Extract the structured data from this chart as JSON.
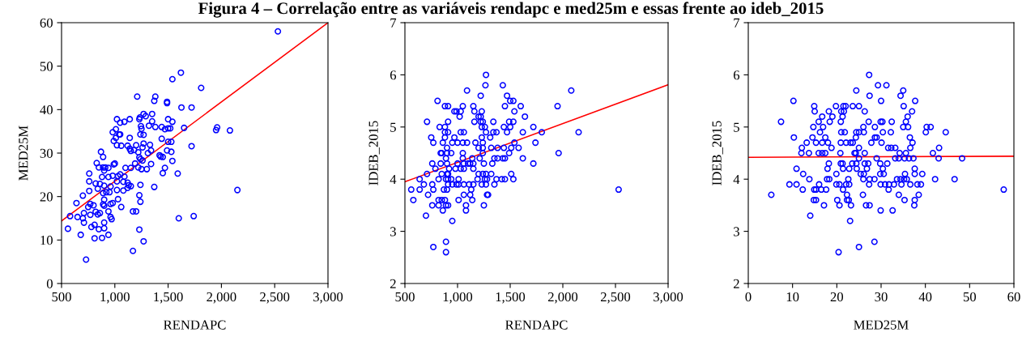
{
  "chart_data": [
    {
      "type": "scatter",
      "title": "Figura 4 – Correlação entre as variáveis rendapc e med25m e essas frente ao ideb_2015",
      "xlabel": "RENDAPC",
      "ylabel": "MED25M",
      "xlim": [
        500,
        3000
      ],
      "xticks": [
        500,
        {
          "value": 1000,
          "label": "1,000"
        },
        {
          "value": 1500,
          "label": "1,500"
        },
        {
          "value": 2000,
          "label": "2,000"
        },
        {
          "value": 2500,
          "label": "2,500"
        },
        {
          "value": 3000,
          "label": "3,000"
        }
      ],
      "ylim": [
        0,
        60
      ],
      "yticks": [
        0,
        10,
        20,
        30,
        40,
        50,
        60
      ],
      "grid": false,
      "series": [
        {
          "marker": "circle",
          "color": "#0000ff",
          "x": [
            2530,
            1620,
            1540,
            1810,
            1210,
            1380,
            1370,
            1490,
            1490,
            1625,
            1720,
            1270,
            1290,
            1350,
            1235,
            1020,
            1140,
            1090,
            1050,
            1230,
            1350,
            1540,
            1320,
            1380,
            1500,
            1245,
            1440,
            1470,
            1500,
            1520,
            1650,
            1960,
            1950,
            2080,
            1250,
            1010,
            980,
            1240,
            1270,
            1040,
            1050,
            1010,
            1140,
            990,
            1440,
            1500,
            1530,
            1720,
            1270,
            1330,
            1120,
            1200,
            1020,
            1060,
            1140,
            1150,
            1180,
            1260,
            1340,
            1310,
            1490,
            1530,
            870,
            1220,
            1420,
            1430,
            1450,
            1540,
            890,
            830,
            1000,
            990,
            1190,
            1230,
            1240,
            1260,
            1340,
            1470,
            850,
            890,
            910,
            940,
            1100,
            1150,
            1220,
            1250,
            1300,
            1450,
            1590,
            760,
            900,
            1050,
            980,
            1030,
            880,
            940,
            1090,
            760,
            820,
            860,
            900,
            1020,
            1080,
            1120,
            1130,
            1150,
            1240,
            1370,
            840,
            1120,
            960,
            1020,
            1080,
            920,
            950,
            890,
            700,
            1230,
            760,
            1030,
            1240,
            900,
            640,
            770,
            800,
            890,
            960,
            980,
            750,
            1060,
            710,
            820,
            860,
            940,
            1170,
            1200,
            580,
            650,
            700,
            770,
            840,
            960,
            970,
            1600,
            1740,
            710,
            810,
            780,
            900,
            560,
            850,
            900,
            1230,
            680,
            810,
            880,
            940,
            1270,
            1170,
            730,
            2150,
            900
          ],
          "values": [
            58,
            48.5,
            47,
            45,
            43,
            43,
            42,
            41.8,
            41.5,
            40.5,
            40.5,
            39,
            38.5,
            39,
            38.2,
            37.8,
            37.8,
            37.2,
            37,
            37.8,
            37.3,
            37.2,
            36.3,
            36,
            37.8,
            36.2,
            36,
            35.5,
            35.7,
            35.7,
            35.8,
            35.9,
            35.3,
            35.2,
            35.6,
            35.5,
            34.8,
            34.3,
            34.2,
            34.3,
            34.3,
            33.5,
            33.5,
            32.8,
            33.3,
            32.6,
            32.6,
            31.6,
            32.2,
            31.9,
            31.7,
            31.8,
            31.8,
            31.7,
            31,
            30.5,
            30.7,
            31.3,
            30.6,
            30,
            30.6,
            30.3,
            30.3,
            30.2,
            29.5,
            29.2,
            29.1,
            28.2,
            29.1,
            27.7,
            27.6,
            27.4,
            27.6,
            29,
            28.6,
            28.3,
            27.5,
            26.6,
            26.7,
            26.7,
            26.7,
            26.6,
            26.6,
            26.6,
            26.7,
            26.3,
            26.3,
            25.4,
            25.3,
            25.3,
            26,
            25.1,
            24.8,
            24.7,
            24.5,
            24.5,
            24.6,
            23.5,
            23,
            22.9,
            22.5,
            23.5,
            23.4,
            23.2,
            22.6,
            22.4,
            22.7,
            22.2,
            21.8,
            22,
            22.3,
            21.5,
            21.4,
            21,
            21,
            20.8,
            20.2,
            20.3,
            21.3,
            19.4,
            18.8,
            19.3,
            18.5,
            18.3,
            18,
            18.2,
            18.3,
            18.5,
            17.6,
            17.6,
            16.2,
            16.5,
            16.2,
            16.6,
            16.6,
            16.6,
            15.5,
            15.3,
            15,
            15.8,
            15.9,
            15.3,
            14.8,
            15,
            15.5,
            14,
            13.5,
            13,
            14,
            12.6,
            12.5,
            12.7,
            12.4,
            11.2,
            10.4,
            10.5,
            11.2,
            9.7,
            7.5,
            5.5,
            21.5,
            17.9
          ]
        },
        {
          "type": "line",
          "color": "#ff0000",
          "x": [
            500,
            3000
          ],
          "values": [
            14.4,
            60
          ]
        }
      ]
    },
    {
      "type": "scatter",
      "xlabel": "RENDAPC",
      "ylabel": "IDEB_2015",
      "xlim": [
        500,
        3000
      ],
      "xticks": [
        500,
        {
          "value": 1000,
          "label": "1,000"
        },
        {
          "value": 1500,
          "label": "1,500"
        },
        {
          "value": 2000,
          "label": "2,000"
        },
        {
          "value": 2500,
          "label": "2,500"
        },
        {
          "value": 3000,
          "label": "3,000"
        }
      ],
      "ylim": [
        2,
        7
      ],
      "yticks": [
        2,
        3,
        4,
        5,
        6,
        7
      ],
      "grid": false,
      "series": [
        {
          "marker": "circle",
          "color": "#0000ff",
          "x": [
            1270,
            1265,
            1430,
            1090,
            2080,
            1220,
            1470,
            810,
            1500,
            1530,
            880,
            910,
            1050,
            1150,
            1450,
            1600,
            1950,
            970,
            990,
            1030,
            1160,
            1230,
            1540,
            1020,
            1200,
            1220,
            1640,
            710,
            910,
            1160,
            1220,
            1240,
            1340,
            1490,
            1530,
            830,
            880,
            1230,
            1260,
            1440,
            1500,
            1720,
            880,
            910,
            1030,
            1060,
            1270,
            1340,
            1370,
            1470,
            1620,
            1800,
            2150,
            750,
            880,
            970,
            1230,
            1310,
            770,
            860,
            950,
            1000,
            1050,
            1090,
            1170,
            1240,
            1540,
            1740,
            900,
            1200,
            1240,
            1320,
            1380,
            1440,
            1510,
            1580,
            840,
            850,
            900,
            940,
            1050,
            1240,
            1490,
            1960,
            890,
            1050,
            1140,
            1210,
            1350,
            1380,
            1430,
            1450,
            1620,
            760,
            840,
            900,
            1000,
            1060,
            1100,
            1120,
            1150,
            1250,
            1330,
            1720,
            790,
            920,
            980,
            1030,
            1060,
            1150,
            710,
            850,
            900,
            910,
            1200,
            1240,
            1270,
            1320,
            1510,
            640,
            820,
            890,
            910,
            940,
            1010,
            1190,
            1260,
            1280,
            1370,
            1420,
            1450,
            1530,
            680,
            760,
            910,
            950,
            990,
            1010,
            1060,
            1110,
            1150,
            1230,
            1270,
            1350,
            560,
            640,
            770,
            870,
            900,
            1130,
            2530,
            720,
            1060,
            1120,
            1280,
            1290,
            580,
            820,
            850,
            880,
            1010,
            1140,
            760,
            820,
            890,
            910,
            1080,
            1250,
            860,
            1080,
            700,
            950,
            890,
            770,
            890
          ],
          "values": [
            6.0,
            5.8,
            5.8,
            5.7,
            5.7,
            5.6,
            5.6,
            5.5,
            5.5,
            5.5,
            5.4,
            5.4,
            5.4,
            5.4,
            5.4,
            5.4,
            5.4,
            5.3,
            5.3,
            5.3,
            5.3,
            5.3,
            5.3,
            5.2,
            5.2,
            5.2,
            5.2,
            5.1,
            5.1,
            5.1,
            5.1,
            5.1,
            5.1,
            5.1,
            5.1,
            5.0,
            5.0,
            5.0,
            5.0,
            5.0,
            5.0,
            5.0,
            4.9,
            4.9,
            4.9,
            4.9,
            4.9,
            4.9,
            4.9,
            4.9,
            4.9,
            4.9,
            4.9,
            4.8,
            4.8,
            4.8,
            4.8,
            4.8,
            4.7,
            4.7,
            4.7,
            4.7,
            4.7,
            4.7,
            4.7,
            4.7,
            4.7,
            4.7,
            4.6,
            4.6,
            4.6,
            4.6,
            4.6,
            4.6,
            4.6,
            4.6,
            4.5,
            4.5,
            4.5,
            4.5,
            4.5,
            4.5,
            4.5,
            4.5,
            4.4,
            4.4,
            4.4,
            4.4,
            4.4,
            4.4,
            4.4,
            4.4,
            4.4,
            4.3,
            4.3,
            4.3,
            4.3,
            4.3,
            4.3,
            4.3,
            4.3,
            4.3,
            4.3,
            4.3,
            4.2,
            4.2,
            4.2,
            4.2,
            4.2,
            4.2,
            4.1,
            4.1,
            4.1,
            4.1,
            4.1,
            4.1,
            4.1,
            4.1,
            4.1,
            4.0,
            4.0,
            4.0,
            4.0,
            4.0,
            4.0,
            4.0,
            4.0,
            4.0,
            4.0,
            4.0,
            4.0,
            4.0,
            3.9,
            3.9,
            3.9,
            3.9,
            3.9,
            3.9,
            3.9,
            3.9,
            3.9,
            3.9,
            3.9,
            3.9,
            3.8,
            3.8,
            3.8,
            3.8,
            3.8,
            3.8,
            3.8,
            3.7,
            3.7,
            3.7,
            3.7,
            3.7,
            3.6,
            3.6,
            3.6,
            3.6,
            3.6,
            3.6,
            3.5,
            3.5,
            3.5,
            3.5,
            3.5,
            3.5,
            3.4,
            3.4,
            3.3,
            3.2,
            2.8,
            2.7,
            2.6
          ]
        },
        {
          "type": "line",
          "color": "#ff0000",
          "x": [
            500,
            3000
          ],
          "values": [
            3.95,
            5.81
          ]
        }
      ]
    },
    {
      "type": "scatter",
      "xlabel": "MED25M",
      "ylabel": "IDEB_2015",
      "xlim": [
        0,
        60
      ],
      "xticks": [
        0,
        10,
        20,
        30,
        40,
        50,
        60
      ],
      "ylim": [
        2,
        7
      ],
      "yticks": [
        2,
        3,
        4,
        5,
        6,
        7
      ],
      "grid": false,
      "series": [
        {
          "marker": "circle",
          "color": "#0000ff",
          "x": [
            27.3,
            29.3,
            31.2,
            24.4,
            35.0,
            27.4,
            34.4,
            10.2,
            30.0,
            37.7,
            14.9,
            19.8,
            21.5,
            22.0,
            23.6,
            25.0,
            35.1,
            15.0,
            18.2,
            21.0,
            21.6,
            26.3,
            37.0,
            16.7,
            19.0,
            21.3,
            36.0,
            7.4,
            15.9,
            18.4,
            20.9,
            27.2,
            29.9,
            30.3,
            32.4,
            35.6,
            14.7,
            16.9,
            26.0,
            28.6,
            35.0,
            36.1,
            40.3,
            41.2,
            16.2,
            21.0,
            21.8,
            24.4,
            25.0,
            26.1,
            30.4,
            32.2,
            40.1,
            44.6,
            10.3,
            14.5,
            17.4,
            24.3,
            28.6,
            29.0,
            36.5,
            13.2,
            15.3,
            16.7,
            18.0,
            20.9,
            22.1,
            23.1,
            23.6,
            27.8,
            30.1,
            37.1,
            12.1,
            18.8,
            25.0,
            31.6,
            32.3,
            33.2,
            36.6,
            43.1,
            12.0,
            13.7,
            15.9,
            16.7,
            17.4,
            20.8,
            24.0,
            24.3,
            26.3,
            34.2,
            35.6,
            41.7,
            25.0,
            29.0,
            33.2,
            34.0,
            35.3,
            36.3,
            37.3,
            43.0,
            48.3,
            18.2,
            20.9,
            21.3,
            23.5,
            24.4,
            26.3,
            27.1,
            29.8,
            31.4,
            10.9,
            17.9,
            21.4,
            22.8,
            24.5,
            26.8,
            30.4,
            37.6,
            12.4,
            19.9,
            25.4,
            26.1,
            29.8,
            30.6,
            35.4,
            37.6,
            39.3,
            13.8,
            17.8,
            18.3,
            22.6,
            26.0,
            27.4,
            28.5,
            33.6,
            34.4,
            35.2,
            35.8,
            42.2,
            46.6,
            9.3,
            10.9,
            16.0,
            19.9,
            20.6,
            22.1,
            22.8,
            27.3,
            29.9,
            30.9,
            31.8,
            32.9,
            34.6,
            36.6,
            38.2,
            39.0,
            5.2,
            12.3,
            14.9,
            15.3,
            16.5,
            17.6,
            21.4,
            31.7,
            57.7,
            22.3,
            25.9,
            34.0,
            38.5,
            14.8,
            15.3,
            20.1,
            22.3,
            22.7,
            35.3,
            37.6,
            17.1,
            20.6,
            23.2,
            26.6,
            27.4,
            37.5,
            29.9,
            32.6,
            14.0,
            23.0,
            28.5,
            25.0,
            20.4
          ],
          "values": [
            6.0,
            5.8,
            5.8,
            5.7,
            5.7,
            5.6,
            5.6,
            5.5,
            5.5,
            5.5,
            5.4,
            5.4,
            5.4,
            5.4,
            5.4,
            5.4,
            5.4,
            5.3,
            5.3,
            5.3,
            5.3,
            5.3,
            5.3,
            5.2,
            5.2,
            5.2,
            5.2,
            5.1,
            5.1,
            5.1,
            5.1,
            5.1,
            5.1,
            5.1,
            5.1,
            5.1,
            5.0,
            5.0,
            5.0,
            5.0,
            5.0,
            5.0,
            5.0,
            5.0,
            4.9,
            4.9,
            4.9,
            4.9,
            4.9,
            4.9,
            4.9,
            4.9,
            4.9,
            4.9,
            4.8,
            4.8,
            4.8,
            4.8,
            4.8,
            4.8,
            4.8,
            4.7,
            4.7,
            4.7,
            4.7,
            4.7,
            4.7,
            4.7,
            4.7,
            4.7,
            4.7,
            4.7,
            4.6,
            4.6,
            4.6,
            4.6,
            4.6,
            4.6,
            4.6,
            4.6,
            4.5,
            4.5,
            4.5,
            4.5,
            4.5,
            4.5,
            4.5,
            4.5,
            4.5,
            4.5,
            4.5,
            4.5,
            4.4,
            4.4,
            4.4,
            4.4,
            4.4,
            4.4,
            4.4,
            4.4,
            4.4,
            4.3,
            4.3,
            4.3,
            4.3,
            4.3,
            4.3,
            4.3,
            4.3,
            4.3,
            4.2,
            4.2,
            4.2,
            4.2,
            4.2,
            4.2,
            4.2,
            4.2,
            4.1,
            4.1,
            4.1,
            4.1,
            4.1,
            4.1,
            4.1,
            4.1,
            4.1,
            4.0,
            4.0,
            4.0,
            4.0,
            4.0,
            4.0,
            4.0,
            4.0,
            4.0,
            4.0,
            4.0,
            4.0,
            4.0,
            3.9,
            3.9,
            3.9,
            3.9,
            3.9,
            3.9,
            3.9,
            3.9,
            3.9,
            3.9,
            3.9,
            3.9,
            3.9,
            3.9,
            3.9,
            3.9,
            3.7,
            3.8,
            3.8,
            3.8,
            3.8,
            3.8,
            3.8,
            3.8,
            3.8,
            3.7,
            3.7,
            3.7,
            3.7,
            3.6,
            3.6,
            3.6,
            3.6,
            3.6,
            3.6,
            3.6,
            3.5,
            3.5,
            3.5,
            3.5,
            3.5,
            3.5,
            3.4,
            3.4,
            3.3,
            3.2,
            2.8,
            2.7,
            2.6
          ]
        },
        {
          "type": "line",
          "color": "#ff0000",
          "x": [
            0,
            60
          ],
          "values": [
            4.42,
            4.44
          ]
        }
      ]
    }
  ]
}
